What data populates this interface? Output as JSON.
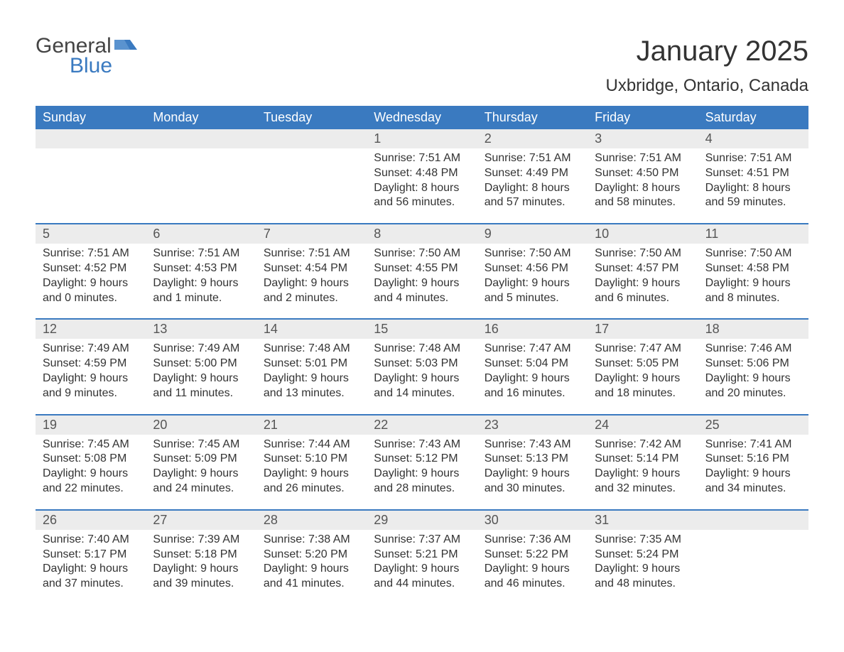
{
  "logo": {
    "general": "General",
    "blue": "Blue",
    "flag_color": "#3a7ac0"
  },
  "title": "January 2025",
  "location": "Uxbridge, Ontario, Canada",
  "colors": {
    "header_bg": "#3a7ac0",
    "header_text": "#ffffff",
    "daynum_bg": "#ececec",
    "daynum_text": "#555555",
    "body_text": "#333333",
    "week_border": "#3a7ac0",
    "page_bg": "#ffffff"
  },
  "typography": {
    "title_fontsize": 40,
    "location_fontsize": 24,
    "header_fontsize": 18,
    "daynum_fontsize": 18,
    "body_fontsize": 16,
    "font_family": "Arial"
  },
  "layout": {
    "columns": 7,
    "weeks": 5,
    "blank_cells_before": 3,
    "blank_cells_after": 1
  },
  "day_names": [
    "Sunday",
    "Monday",
    "Tuesday",
    "Wednesday",
    "Thursday",
    "Friday",
    "Saturday"
  ],
  "days": [
    {
      "n": 1,
      "sunrise": "7:51 AM",
      "sunset": "4:48 PM",
      "daylight": "8 hours and 56 minutes."
    },
    {
      "n": 2,
      "sunrise": "7:51 AM",
      "sunset": "4:49 PM",
      "daylight": "8 hours and 57 minutes."
    },
    {
      "n": 3,
      "sunrise": "7:51 AM",
      "sunset": "4:50 PM",
      "daylight": "8 hours and 58 minutes."
    },
    {
      "n": 4,
      "sunrise": "7:51 AM",
      "sunset": "4:51 PM",
      "daylight": "8 hours and 59 minutes."
    },
    {
      "n": 5,
      "sunrise": "7:51 AM",
      "sunset": "4:52 PM",
      "daylight": "9 hours and 0 minutes."
    },
    {
      "n": 6,
      "sunrise": "7:51 AM",
      "sunset": "4:53 PM",
      "daylight": "9 hours and 1 minute."
    },
    {
      "n": 7,
      "sunrise": "7:51 AM",
      "sunset": "4:54 PM",
      "daylight": "9 hours and 2 minutes."
    },
    {
      "n": 8,
      "sunrise": "7:50 AM",
      "sunset": "4:55 PM",
      "daylight": "9 hours and 4 minutes."
    },
    {
      "n": 9,
      "sunrise": "7:50 AM",
      "sunset": "4:56 PM",
      "daylight": "9 hours and 5 minutes."
    },
    {
      "n": 10,
      "sunrise": "7:50 AM",
      "sunset": "4:57 PM",
      "daylight": "9 hours and 6 minutes."
    },
    {
      "n": 11,
      "sunrise": "7:50 AM",
      "sunset": "4:58 PM",
      "daylight": "9 hours and 8 minutes."
    },
    {
      "n": 12,
      "sunrise": "7:49 AM",
      "sunset": "4:59 PM",
      "daylight": "9 hours and 9 minutes."
    },
    {
      "n": 13,
      "sunrise": "7:49 AM",
      "sunset": "5:00 PM",
      "daylight": "9 hours and 11 minutes."
    },
    {
      "n": 14,
      "sunrise": "7:48 AM",
      "sunset": "5:01 PM",
      "daylight": "9 hours and 13 minutes."
    },
    {
      "n": 15,
      "sunrise": "7:48 AM",
      "sunset": "5:03 PM",
      "daylight": "9 hours and 14 minutes."
    },
    {
      "n": 16,
      "sunrise": "7:47 AM",
      "sunset": "5:04 PM",
      "daylight": "9 hours and 16 minutes."
    },
    {
      "n": 17,
      "sunrise": "7:47 AM",
      "sunset": "5:05 PM",
      "daylight": "9 hours and 18 minutes."
    },
    {
      "n": 18,
      "sunrise": "7:46 AM",
      "sunset": "5:06 PM",
      "daylight": "9 hours and 20 minutes."
    },
    {
      "n": 19,
      "sunrise": "7:45 AM",
      "sunset": "5:08 PM",
      "daylight": "9 hours and 22 minutes."
    },
    {
      "n": 20,
      "sunrise": "7:45 AM",
      "sunset": "5:09 PM",
      "daylight": "9 hours and 24 minutes."
    },
    {
      "n": 21,
      "sunrise": "7:44 AM",
      "sunset": "5:10 PM",
      "daylight": "9 hours and 26 minutes."
    },
    {
      "n": 22,
      "sunrise": "7:43 AM",
      "sunset": "5:12 PM",
      "daylight": "9 hours and 28 minutes."
    },
    {
      "n": 23,
      "sunrise": "7:43 AM",
      "sunset": "5:13 PM",
      "daylight": "9 hours and 30 minutes."
    },
    {
      "n": 24,
      "sunrise": "7:42 AM",
      "sunset": "5:14 PM",
      "daylight": "9 hours and 32 minutes."
    },
    {
      "n": 25,
      "sunrise": "7:41 AM",
      "sunset": "5:16 PM",
      "daylight": "9 hours and 34 minutes."
    },
    {
      "n": 26,
      "sunrise": "7:40 AM",
      "sunset": "5:17 PM",
      "daylight": "9 hours and 37 minutes."
    },
    {
      "n": 27,
      "sunrise": "7:39 AM",
      "sunset": "5:18 PM",
      "daylight": "9 hours and 39 minutes."
    },
    {
      "n": 28,
      "sunrise": "7:38 AM",
      "sunset": "5:20 PM",
      "daylight": "9 hours and 41 minutes."
    },
    {
      "n": 29,
      "sunrise": "7:37 AM",
      "sunset": "5:21 PM",
      "daylight": "9 hours and 44 minutes."
    },
    {
      "n": 30,
      "sunrise": "7:36 AM",
      "sunset": "5:22 PM",
      "daylight": "9 hours and 46 minutes."
    },
    {
      "n": 31,
      "sunrise": "7:35 AM",
      "sunset": "5:24 PM",
      "daylight": "9 hours and 48 minutes."
    }
  ],
  "labels": {
    "sunrise": "Sunrise: ",
    "sunset": "Sunset: ",
    "daylight": "Daylight: "
  }
}
